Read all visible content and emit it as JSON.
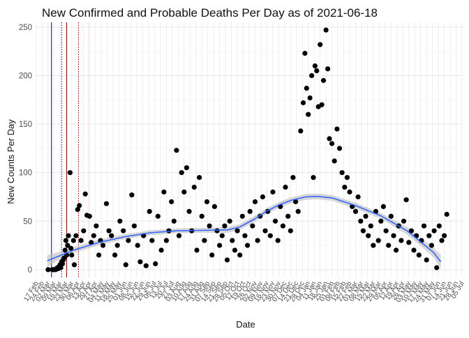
{
  "chart_data": {
    "type": "scatter",
    "title": "New Confirmed and Probable Deaths Per Day as of 2021-06-18",
    "xlabel": "Date",
    "ylabel": "New Counts Per Day",
    "x_range": [
      "2020-02-17",
      "2021-07-05"
    ],
    "ylim": [
      -8,
      255
    ],
    "y_ticks": [
      0,
      50,
      100,
      150,
      200,
      250
    ],
    "x_tick_labels": [
      "17 Feb",
      "24 Feb",
      "02 Mar",
      "09 Mar",
      "16 Mar",
      "23 Mar",
      "30 Mar",
      "06 Apr",
      "13 Apr",
      "20 Apr",
      "27 Apr",
      "04 May",
      "11 May",
      "18 May",
      "25 May",
      "01 Jun",
      "08 Jun",
      "15 Jun",
      "22 Jun",
      "29 Jun",
      "06 Jul",
      "13 Jul",
      "20 Jul",
      "27 Jul",
      "03 Aug",
      "10 Aug",
      "17 Aug",
      "24 Aug",
      "31 Aug",
      "07 Sep",
      "14 Sep",
      "21 Sep",
      "28 Sep",
      "05 Oct",
      "12 Oct",
      "19 Oct",
      "26 Oct",
      "02 Nov",
      "09 Nov",
      "16 Nov",
      "23 Nov",
      "30 Nov",
      "07 Dec",
      "14 Dec",
      "21 Dec",
      "28 Dec",
      "04 Jan",
      "11 Jan",
      "18 Jan",
      "25 Jan",
      "01 Feb",
      "08 Feb",
      "15 Feb",
      "22 Feb",
      "01 Mar",
      "08 Mar",
      "15 Mar",
      "22 Mar",
      "29 Mar",
      "05 Apr",
      "12 Apr",
      "19 Apr",
      "26 Apr",
      "03 May",
      "10 May",
      "17 May",
      "24 May",
      "31 May",
      "07 Jun",
      "14 Jun",
      "21 Jun",
      "28 Jun",
      "05 Jul"
    ],
    "grid": true,
    "reference_lines": [
      {
        "date": "2020-03-06",
        "style": "solid",
        "color": "#00008b"
      },
      {
        "date": "2020-03-18",
        "style": "dotted",
        "color": "#00008b"
      },
      {
        "date": "2020-03-24",
        "style": "solid",
        "color": "#8b0000"
      },
      {
        "date": "2020-04-07",
        "style": "dotted",
        "color": "#8b0000"
      },
      {
        "date": "2020-04-19",
        "style": "dotted",
        "color": "#ffb6c1"
      }
    ],
    "smooth": {
      "color": "#3366ff",
      "band_color": "#bebebe",
      "points": [
        [
          "2020-03-01",
          9
        ],
        [
          "2020-03-15",
          14
        ],
        [
          "2020-04-01",
          20
        ],
        [
          "2020-05-01",
          28
        ],
        [
          "2020-06-01",
          34
        ],
        [
          "2020-07-01",
          38
        ],
        [
          "2020-08-01",
          40
        ],
        [
          "2020-09-01",
          40.5
        ],
        [
          "2020-10-01",
          41
        ],
        [
          "2020-10-15",
          44
        ],
        [
          "2020-11-01",
          52
        ],
        [
          "2020-11-15",
          60
        ],
        [
          "2020-12-01",
          67
        ],
        [
          "2020-12-15",
          71.5
        ],
        [
          "2021-01-01",
          75
        ],
        [
          "2021-01-15",
          75.5
        ],
        [
          "2021-02-01",
          74
        ],
        [
          "2021-02-15",
          70
        ],
        [
          "2021-03-01",
          66
        ],
        [
          "2021-04-01",
          55
        ],
        [
          "2021-05-01",
          40
        ],
        [
          "2021-05-15",
          30
        ],
        [
          "2021-06-01",
          18
        ],
        [
          "2021-06-10",
          8
        ]
      ],
      "band_halfwidth": [
        6,
        4,
        3,
        3,
        2.5,
        2.5,
        2.5,
        2.5,
        3,
        3,
        3,
        3,
        3,
        3,
        3,
        3,
        3,
        3,
        3,
        3,
        4,
        4,
        5,
        7
      ]
    },
    "series": [
      {
        "points": [
          [
            "2020-03-02",
            0
          ],
          [
            "2020-03-07",
            0
          ],
          [
            "2020-03-09",
            0
          ],
          [
            "2020-03-11",
            0
          ],
          [
            "2020-03-12",
            1
          ],
          [
            "2020-03-13",
            2
          ],
          [
            "2020-03-14",
            1
          ],
          [
            "2020-03-15",
            3
          ],
          [
            "2020-03-16",
            5
          ],
          [
            "2020-03-17",
            2
          ],
          [
            "2020-03-18",
            8
          ],
          [
            "2020-03-19",
            6
          ],
          [
            "2020-03-20",
            10
          ],
          [
            "2020-03-21",
            12
          ],
          [
            "2020-03-22",
            20
          ],
          [
            "2020-03-23",
            30
          ],
          [
            "2020-03-24",
            15
          ],
          [
            "2020-03-25",
            25
          ],
          [
            "2020-03-26",
            35
          ],
          [
            "2020-03-28",
            100
          ],
          [
            "2020-03-29",
            22
          ],
          [
            "2020-03-30",
            15
          ],
          [
            "2020-04-01",
            30
          ],
          [
            "2020-04-02",
            5
          ],
          [
            "2020-04-04",
            35
          ],
          [
            "2020-04-06",
            62
          ],
          [
            "2020-04-08",
            66
          ],
          [
            "2020-04-10",
            30
          ],
          [
            "2020-04-13",
            40
          ],
          [
            "2020-04-15",
            78
          ],
          [
            "2020-04-17",
            56
          ],
          [
            "2020-04-20",
            55
          ],
          [
            "2020-04-22",
            28
          ],
          [
            "2020-04-25",
            35
          ],
          [
            "2020-04-28",
            45
          ],
          [
            "2020-05-01",
            15
          ],
          [
            "2020-05-03",
            30
          ],
          [
            "2020-05-06",
            25
          ],
          [
            "2020-05-10",
            68
          ],
          [
            "2020-05-13",
            40
          ],
          [
            "2020-05-16",
            35
          ],
          [
            "2020-05-20",
            15
          ],
          [
            "2020-05-23",
            25
          ],
          [
            "2020-05-26",
            50
          ],
          [
            "2020-05-30",
            40
          ],
          [
            "2020-06-02",
            5
          ],
          [
            "2020-06-05",
            30
          ],
          [
            "2020-06-09",
            77
          ],
          [
            "2020-06-12",
            45
          ],
          [
            "2020-06-16",
            25
          ],
          [
            "2020-06-19",
            8
          ],
          [
            "2020-06-23",
            35
          ],
          [
            "2020-06-26",
            4
          ],
          [
            "2020-06-30",
            60
          ],
          [
            "2020-07-03",
            30
          ],
          [
            "2020-07-07",
            6
          ],
          [
            "2020-07-10",
            55
          ],
          [
            "2020-07-14",
            20
          ],
          [
            "2020-07-17",
            80
          ],
          [
            "2020-07-20",
            30
          ],
          [
            "2020-07-23",
            40
          ],
          [
            "2020-07-26",
            70
          ],
          [
            "2020-07-29",
            50
          ],
          [
            "2020-08-01",
            123
          ],
          [
            "2020-08-04",
            35
          ],
          [
            "2020-08-07",
            100
          ],
          [
            "2020-08-10",
            80
          ],
          [
            "2020-08-13",
            105
          ],
          [
            "2020-08-16",
            60
          ],
          [
            "2020-08-19",
            40
          ],
          [
            "2020-08-22",
            85
          ],
          [
            "2020-08-25",
            20
          ],
          [
            "2020-08-28",
            95
          ],
          [
            "2020-08-31",
            55
          ],
          [
            "2020-09-03",
            30
          ],
          [
            "2020-09-06",
            70
          ],
          [
            "2020-09-09",
            45
          ],
          [
            "2020-09-12",
            15
          ],
          [
            "2020-09-15",
            65
          ],
          [
            "2020-09-18",
            40
          ],
          [
            "2020-09-21",
            25
          ],
          [
            "2020-09-24",
            35
          ],
          [
            "2020-09-27",
            45
          ],
          [
            "2020-09-30",
            10
          ],
          [
            "2020-10-03",
            50
          ],
          [
            "2020-10-06",
            30
          ],
          [
            "2020-10-09",
            20
          ],
          [
            "2020-10-12",
            40
          ],
          [
            "2020-10-15",
            15
          ],
          [
            "2020-10-18",
            55
          ],
          [
            "2020-10-21",
            35
          ],
          [
            "2020-10-24",
            25
          ],
          [
            "2020-10-27",
            60
          ],
          [
            "2020-10-30",
            45
          ],
          [
            "2020-11-02",
            70
          ],
          [
            "2020-11-05",
            30
          ],
          [
            "2020-11-08",
            55
          ],
          [
            "2020-11-11",
            75
          ],
          [
            "2020-11-14",
            40
          ],
          [
            "2020-11-17",
            60
          ],
          [
            "2020-11-20",
            35
          ],
          [
            "2020-11-23",
            80
          ],
          [
            "2020-11-26",
            50
          ],
          [
            "2020-11-29",
            30
          ],
          [
            "2020-12-02",
            65
          ],
          [
            "2020-12-05",
            45
          ],
          [
            "2020-12-08",
            85
          ],
          [
            "2020-12-11",
            55
          ],
          [
            "2020-12-14",
            40
          ],
          [
            "2020-12-17",
            95
          ],
          [
            "2020-12-20",
            70
          ],
          [
            "2020-12-23",
            60
          ],
          [
            "2020-12-26",
            143
          ],
          [
            "2020-12-29",
            172
          ],
          [
            "2020-12-31",
            223
          ],
          [
            "2021-01-02",
            187
          ],
          [
            "2021-01-04",
            160
          ],
          [
            "2021-01-06",
            177
          ],
          [
            "2021-01-08",
            200
          ],
          [
            "2021-01-10",
            95
          ],
          [
            "2021-01-12",
            210
          ],
          [
            "2021-01-14",
            205
          ],
          [
            "2021-01-16",
            168
          ],
          [
            "2021-01-18",
            232
          ],
          [
            "2021-01-20",
            170
          ],
          [
            "2021-01-22",
            195
          ],
          [
            "2021-01-25",
            247
          ],
          [
            "2021-01-27",
            207
          ],
          [
            "2021-01-29",
            135
          ],
          [
            "2021-02-01",
            130
          ],
          [
            "2021-02-04",
            112
          ],
          [
            "2021-02-07",
            145
          ],
          [
            "2021-02-10",
            125
          ],
          [
            "2021-02-13",
            100
          ],
          [
            "2021-02-16",
            85
          ],
          [
            "2021-02-19",
            95
          ],
          [
            "2021-02-22",
            80
          ],
          [
            "2021-02-25",
            65
          ],
          [
            "2021-03-01",
            60
          ],
          [
            "2021-03-04",
            75
          ],
          [
            "2021-03-07",
            50
          ],
          [
            "2021-03-10",
            40
          ],
          [
            "2021-03-13",
            55
          ],
          [
            "2021-03-16",
            35
          ],
          [
            "2021-03-19",
            45
          ],
          [
            "2021-03-22",
            25
          ],
          [
            "2021-03-25",
            60
          ],
          [
            "2021-03-28",
            30
          ],
          [
            "2021-03-31",
            50
          ],
          [
            "2021-04-03",
            65
          ],
          [
            "2021-04-06",
            40
          ],
          [
            "2021-04-09",
            25
          ],
          [
            "2021-04-12",
            55
          ],
          [
            "2021-04-15",
            35
          ],
          [
            "2021-04-18",
            20
          ],
          [
            "2021-04-21",
            45
          ],
          [
            "2021-04-24",
            30
          ],
          [
            "2021-04-27",
            50
          ],
          [
            "2021-04-30",
            72
          ],
          [
            "2021-05-03",
            28
          ],
          [
            "2021-05-06",
            40
          ],
          [
            "2021-05-09",
            20
          ],
          [
            "2021-05-12",
            35
          ],
          [
            "2021-05-15",
            15
          ],
          [
            "2021-05-18",
            30
          ],
          [
            "2021-05-21",
            45
          ],
          [
            "2021-05-24",
            10
          ],
          [
            "2021-05-27",
            35
          ],
          [
            "2021-05-30",
            25
          ],
          [
            "2021-06-02",
            40
          ],
          [
            "2021-06-05",
            2
          ],
          [
            "2021-06-08",
            45
          ],
          [
            "2021-06-11",
            30
          ],
          [
            "2021-06-14",
            35
          ],
          [
            "2021-06-17",
            57
          ]
        ]
      }
    ]
  }
}
